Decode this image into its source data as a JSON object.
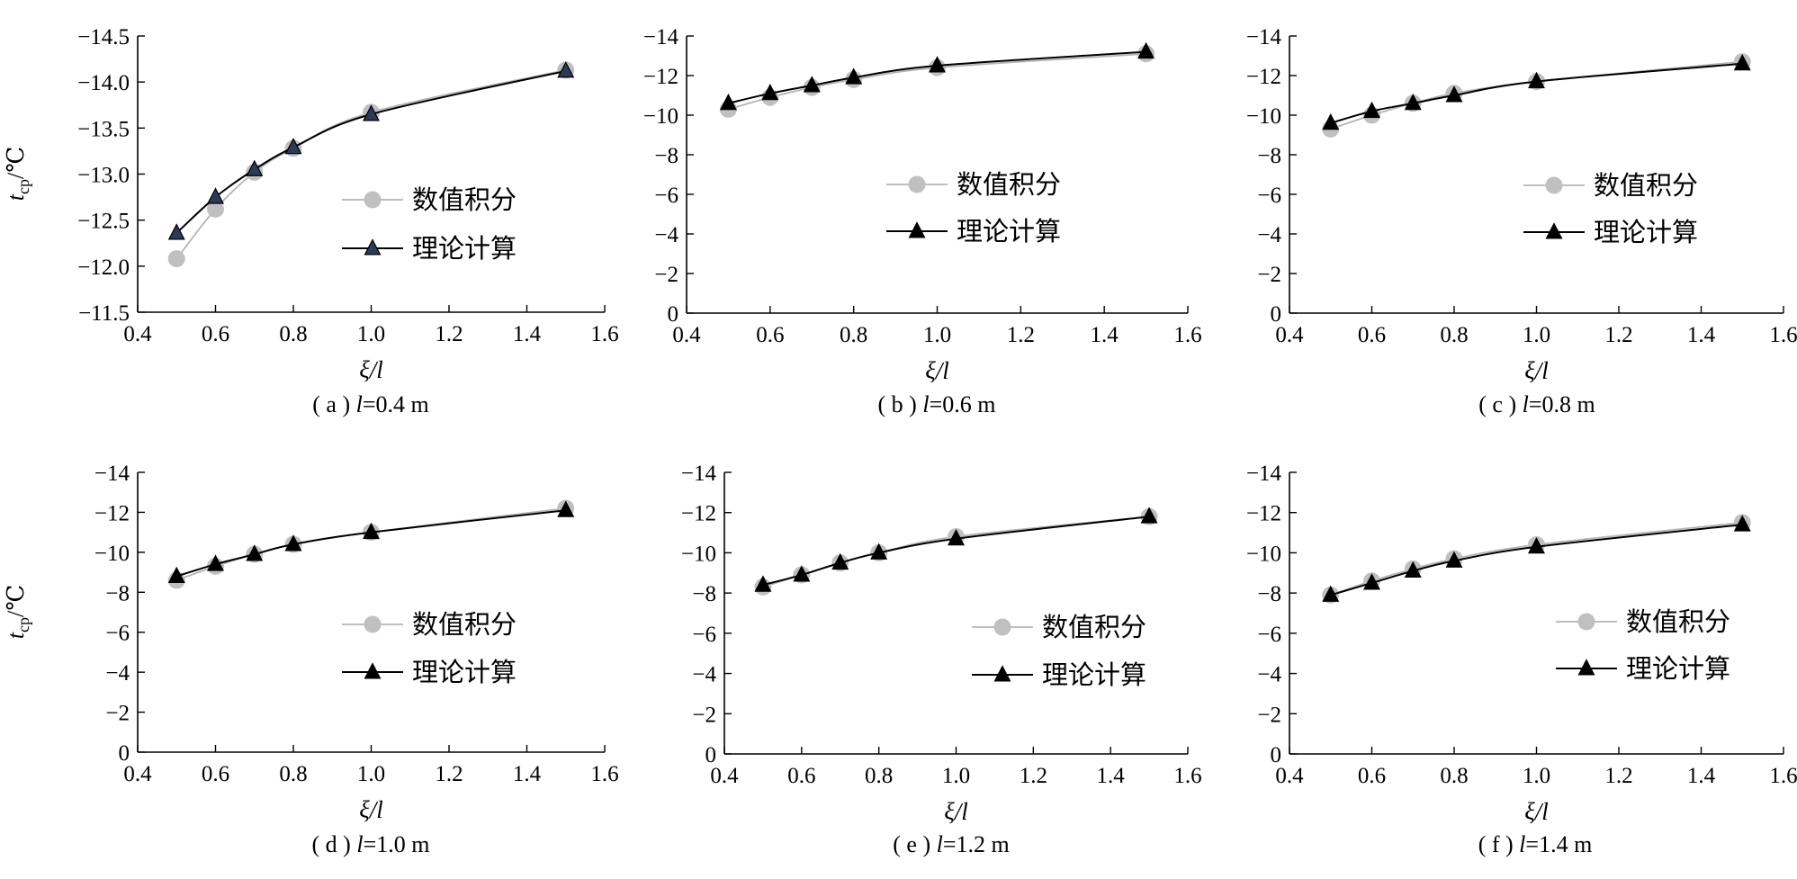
{
  "chart_data": [
    {
      "type": "line",
      "caption": {
        "prefix": "( a ) ",
        "var": "l",
        "suffix": "=0.4 m"
      },
      "xlabel": {
        "main": "ξ",
        "rest": "/l"
      },
      "ylabel": {
        "main": "t",
        "sub": "cp",
        "rest": "/℃"
      },
      "xlim": [
        0.4,
        1.6
      ],
      "xticks": [
        "0.4",
        "0.6",
        "0.8",
        "1.0",
        "1.2",
        "1.4",
        "1.6"
      ],
      "ylim": [
        -11.5,
        -14.5
      ],
      "yticks": [
        {
          "v": -14.5,
          "label": "−14.5"
        },
        {
          "v": -14.0,
          "label": "−14.0"
        },
        {
          "v": -13.5,
          "label": "−13.5"
        },
        {
          "v": -13.0,
          "label": "−13.0"
        },
        {
          "v": -12.5,
          "label": "−12.5"
        },
        {
          "v": -12.0,
          "label": "−12.0"
        },
        {
          "v": -11.5,
          "label": "−11.5"
        }
      ],
      "series": [
        {
          "name": "数值积分",
          "marker": "circle",
          "x": [
            0.5,
            0.6,
            0.7,
            0.8,
            1.0,
            1.5
          ],
          "y": [
            -12.08,
            -12.62,
            -13.02,
            -13.28,
            -13.67,
            -14.13
          ]
        },
        {
          "name": "理论计算",
          "marker": "triangle",
          "x": [
            0.5,
            0.6,
            0.7,
            0.8,
            1.0,
            1.5
          ],
          "y": [
            -12.36,
            -12.75,
            -13.05,
            -13.29,
            -13.65,
            -14.12
          ]
        }
      ]
    },
    {
      "type": "line",
      "caption": {
        "prefix": "( b ) ",
        "var": "l",
        "suffix": "=0.6 m"
      },
      "xlabel": {
        "main": "ξ",
        "rest": "/l"
      },
      "ylabel": {
        "main": "",
        "sub": "",
        "rest": ""
      },
      "xlim": [
        0.4,
        1.6
      ],
      "xticks": [
        "0.4",
        "0.6",
        "0.8",
        "1.0",
        "1.2",
        "1.4",
        "1.6"
      ],
      "ylim": [
        0,
        -14
      ],
      "yticks": [
        {
          "v": -14,
          "label": "−14"
        },
        {
          "v": -12,
          "label": "−12"
        },
        {
          "v": -10,
          "label": "−10"
        },
        {
          "v": -8,
          "label": "−8"
        },
        {
          "v": -6,
          "label": "−6"
        },
        {
          "v": -4,
          "label": "−4"
        },
        {
          "v": -2,
          "label": "−2"
        },
        {
          "v": 0,
          "label": "0"
        }
      ],
      "series": [
        {
          "name": "数值积分",
          "marker": "circle",
          "x": [
            0.5,
            0.6,
            0.7,
            0.8,
            1.0,
            1.5
          ],
          "y": [
            -10.3,
            -10.9,
            -11.4,
            -11.8,
            -12.4,
            -13.1
          ]
        },
        {
          "name": "理论计算",
          "marker": "triangle",
          "x": [
            0.5,
            0.6,
            0.7,
            0.8,
            1.0,
            1.5
          ],
          "y": [
            -10.6,
            -11.1,
            -11.5,
            -11.9,
            -12.5,
            -13.2
          ]
        }
      ]
    },
    {
      "type": "line",
      "caption": {
        "prefix": "( c ) ",
        "var": "l",
        "suffix": "=0.8 m"
      },
      "xlabel": {
        "main": "ξ",
        "rest": "/l"
      },
      "ylabel": {
        "main": "",
        "sub": "",
        "rest": ""
      },
      "xlim": [
        0.4,
        1.6
      ],
      "xticks": [
        "0.4",
        "0.6",
        "0.8",
        "1.0",
        "1.2",
        "1.4",
        "1.6"
      ],
      "ylim": [
        0,
        -14
      ],
      "yticks": [
        {
          "v": -14,
          "label": "−14"
        },
        {
          "v": -12,
          "label": "−12"
        },
        {
          "v": -10,
          "label": "−10"
        },
        {
          "v": -8,
          "label": "−8"
        },
        {
          "v": -6,
          "label": "−6"
        },
        {
          "v": -4,
          "label": "−4"
        },
        {
          "v": -2,
          "label": "−2"
        },
        {
          "v": 0,
          "label": "0"
        }
      ],
      "series": [
        {
          "name": "数值积分",
          "marker": "circle",
          "x": [
            0.5,
            0.6,
            0.7,
            0.8,
            1.0,
            1.5
          ],
          "y": [
            -9.3,
            -10.0,
            -10.6,
            -11.1,
            -11.7,
            -12.7
          ]
        },
        {
          "name": "理论计算",
          "marker": "triangle",
          "x": [
            0.5,
            0.6,
            0.7,
            0.8,
            1.0,
            1.5
          ],
          "y": [
            -9.6,
            -10.2,
            -10.6,
            -11.0,
            -11.7,
            -12.6
          ]
        }
      ]
    },
    {
      "type": "line",
      "caption": {
        "prefix": "( d ) ",
        "var": "l",
        "suffix": "=1.0 m"
      },
      "xlabel": {
        "main": "ξ",
        "rest": "/l"
      },
      "ylabel": {
        "main": "t",
        "sub": "cp",
        "rest": "/℃"
      },
      "xlim": [
        0.4,
        1.6
      ],
      "xticks": [
        "0.4",
        "0.6",
        "0.8",
        "1.0",
        "1.2",
        "1.4",
        "1.6"
      ],
      "ylim": [
        0,
        -14
      ],
      "yticks": [
        {
          "v": -14,
          "label": "−14"
        },
        {
          "v": -12,
          "label": "−12"
        },
        {
          "v": -10,
          "label": "−10"
        },
        {
          "v": -8,
          "label": "−8"
        },
        {
          "v": -6,
          "label": "−6"
        },
        {
          "v": -4,
          "label": "−4"
        },
        {
          "v": -2,
          "label": "−2"
        },
        {
          "v": 0,
          "label": "0"
        }
      ],
      "series": [
        {
          "name": "数值积分",
          "marker": "circle",
          "x": [
            0.5,
            0.6,
            0.7,
            0.8,
            1.0,
            1.5
          ],
          "y": [
            -8.6,
            -9.3,
            -9.9,
            -10.4,
            -11.0,
            -12.2
          ]
        },
        {
          "name": "理论计算",
          "marker": "triangle",
          "x": [
            0.5,
            0.6,
            0.7,
            0.8,
            1.0,
            1.5
          ],
          "y": [
            -8.8,
            -9.4,
            -9.9,
            -10.4,
            -11.0,
            -12.1
          ]
        }
      ]
    },
    {
      "type": "line",
      "caption": {
        "prefix": "( e ) ",
        "var": "l",
        "suffix": "=1.2 m"
      },
      "xlabel": {
        "main": "ξ",
        "rest": "/l"
      },
      "ylabel": {
        "main": "",
        "sub": "",
        "rest": ""
      },
      "xlim": [
        0.4,
        1.6
      ],
      "xticks": [
        "0.4",
        "0.6",
        "0.8",
        "1.0",
        "1.2",
        "1.4",
        "1.6"
      ],
      "ylim": [
        0,
        -14
      ],
      "yticks": [
        {
          "v": -14,
          "label": "−14"
        },
        {
          "v": -12,
          "label": "−12"
        },
        {
          "v": -10,
          "label": "−10"
        },
        {
          "v": -8,
          "label": "−8"
        },
        {
          "v": -6,
          "label": "−6"
        },
        {
          "v": -4,
          "label": "−4"
        },
        {
          "v": -2,
          "label": "−2"
        },
        {
          "v": 0,
          "label": "0"
        }
      ],
      "series": [
        {
          "name": "数值积分",
          "marker": "circle",
          "x": [
            0.5,
            0.6,
            0.7,
            0.8,
            1.0,
            1.5
          ],
          "y": [
            -8.3,
            -8.9,
            -9.5,
            -10.0,
            -10.8,
            -11.8
          ]
        },
        {
          "name": "理论计算",
          "marker": "triangle",
          "x": [
            0.5,
            0.6,
            0.7,
            0.8,
            1.0,
            1.5
          ],
          "y": [
            -8.4,
            -8.9,
            -9.5,
            -10.0,
            -10.7,
            -11.8
          ]
        }
      ]
    },
    {
      "type": "line",
      "caption": {
        "prefix": "( f ) ",
        "var": "l",
        "suffix": "=1.4 m"
      },
      "xlabel": {
        "main": "ξ",
        "rest": "/l"
      },
      "ylabel": {
        "main": "",
        "sub": "",
        "rest": ""
      },
      "xlim": [
        0.4,
        1.6
      ],
      "xticks": [
        "0.4",
        "0.6",
        "0.8",
        "1.0",
        "1.2",
        "1.4",
        "1.6"
      ],
      "ylim": [
        0,
        -14
      ],
      "yticks": [
        {
          "v": -14,
          "label": "−14"
        },
        {
          "v": -12,
          "label": "−12"
        },
        {
          "v": -10,
          "label": "−10"
        },
        {
          "v": -8,
          "label": "−8"
        },
        {
          "v": -6,
          "label": "−6"
        },
        {
          "v": -4,
          "label": "−4"
        },
        {
          "v": -2,
          "label": "−2"
        },
        {
          "v": 0,
          "label": "0"
        }
      ],
      "series": [
        {
          "name": "数值积分",
          "marker": "circle",
          "x": [
            0.5,
            0.6,
            0.7,
            0.8,
            1.0,
            1.5
          ],
          "y": [
            -7.9,
            -8.6,
            -9.2,
            -9.7,
            -10.4,
            -11.5
          ]
        },
        {
          "name": "理论计算",
          "marker": "triangle",
          "x": [
            0.5,
            0.6,
            0.7,
            0.8,
            1.0,
            1.5
          ],
          "y": [
            -7.9,
            -8.5,
            -9.1,
            -9.6,
            -10.3,
            -11.4
          ]
        }
      ]
    }
  ],
  "colors": {
    "circle_line": "#b4b4b4",
    "circle_marker": "#c0c0c0",
    "triangle_line": "#000000",
    "triangle_marker_a": "#2b3a55",
    "triangle_marker": "#000000",
    "axis": "#000000"
  }
}
